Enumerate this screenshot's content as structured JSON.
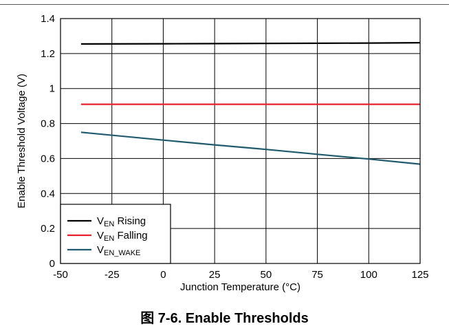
{
  "caption": "图 7-6. Enable Thresholds",
  "chart_data": {
    "type": "line",
    "title": "",
    "xlabel": "Junction Temperature (°C)",
    "ylabel": "Enable Threshold Voltage (V)",
    "xlim": [
      -50,
      125
    ],
    "ylim": [
      0,
      1.4
    ],
    "x_ticks": [
      -50,
      -25,
      0,
      25,
      50,
      75,
      100,
      125
    ],
    "y_ticks": [
      0,
      0.2,
      0.4,
      0.6,
      0.8,
      1,
      1.2,
      1.4
    ],
    "x_tick_labels": [
      "-50",
      "-25",
      "0",
      "25",
      "50",
      "75",
      "100",
      "125"
    ],
    "y_tick_labels": [
      "0",
      "0.2",
      "0.4",
      "0.6",
      "0.8",
      "1",
      "1.2",
      "1.4"
    ],
    "grid": true,
    "legend_position": "bottom-left",
    "series": [
      {
        "name": "V",
        "subscript": "EN",
        "suffix": " Rising",
        "color": "#000000",
        "x": [
          -40,
          0,
          25,
          50,
          75,
          100,
          125
        ],
        "y": [
          1.255,
          1.256,
          1.257,
          1.258,
          1.259,
          1.26,
          1.262
        ]
      },
      {
        "name": "V",
        "subscript": "EN",
        "suffix": " Falling",
        "color": "#e8202a",
        "x": [
          -40,
          0,
          25,
          50,
          75,
          100,
          125
        ],
        "y": [
          0.91,
          0.91,
          0.91,
          0.91,
          0.91,
          0.91,
          0.91
        ]
      },
      {
        "name": "V",
        "subscript": "EN_WAKE",
        "suffix": "",
        "color": "#1f5a6e",
        "x": [
          -40,
          0,
          25,
          50,
          75,
          100,
          125
        ],
        "y": [
          0.75,
          0.705,
          0.678,
          0.652,
          0.624,
          0.597,
          0.568
        ]
      }
    ]
  }
}
